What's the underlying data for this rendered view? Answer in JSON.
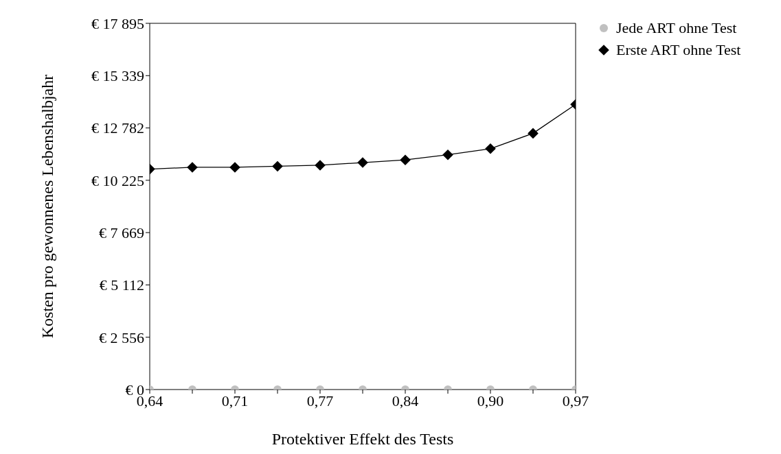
{
  "chart_data": {
    "type": "line",
    "xlabel": "Protektiver Effekt des Tests",
    "ylabel": "Kosten pro gewonnenes Lebenshalbjahr",
    "x": [
      0.64,
      0.673,
      0.706,
      0.739,
      0.772,
      0.805,
      0.838,
      0.871,
      0.904,
      0.937,
      0.97
    ],
    "xlim": [
      0.64,
      0.97
    ],
    "xticks": [
      {
        "value": 0.64,
        "label": "0,64"
      },
      {
        "value": 0.673,
        "label": null
      },
      {
        "value": 0.706,
        "label": "0,71"
      },
      {
        "value": 0.739,
        "label": null
      },
      {
        "value": 0.772,
        "label": "0,77"
      },
      {
        "value": 0.805,
        "label": null
      },
      {
        "value": 0.838,
        "label": "0,84"
      },
      {
        "value": 0.871,
        "label": null
      },
      {
        "value": 0.904,
        "label": "0,90"
      },
      {
        "value": 0.937,
        "label": null
      },
      {
        "value": 0.97,
        "label": "0,97"
      }
    ],
    "ylim": [
      0,
      17895
    ],
    "yticks": [
      {
        "value": 0,
        "label": "€ 0"
      },
      {
        "value": 2556,
        "label": "€ 2 556"
      },
      {
        "value": 5112,
        "label": "€ 5 112"
      },
      {
        "value": 7669,
        "label": "€ 7 669"
      },
      {
        "value": 10225,
        "label": "€ 10 225"
      },
      {
        "value": 12782,
        "label": "€ 12 782"
      },
      {
        "value": 15339,
        "label": "€ 15 339"
      },
      {
        "value": 17895,
        "label": "€ 17 895"
      }
    ],
    "grid": false,
    "legend": "top right",
    "series": [
      {
        "name": "Jede ART ohne Test",
        "type": "scatter",
        "marker": "circle",
        "color": "#c0c0c0",
        "values": [
          0,
          0,
          0,
          0,
          0,
          0,
          0,
          0,
          0,
          0,
          0
        ]
      },
      {
        "name": "Erste ART ohne Test",
        "marker": "diamond",
        "line_style": "solid",
        "color": "#000000",
        "values": [
          10770,
          10860,
          10860,
          10910,
          10960,
          11090,
          11220,
          11470,
          11770,
          12520,
          13930
        ]
      }
    ]
  }
}
